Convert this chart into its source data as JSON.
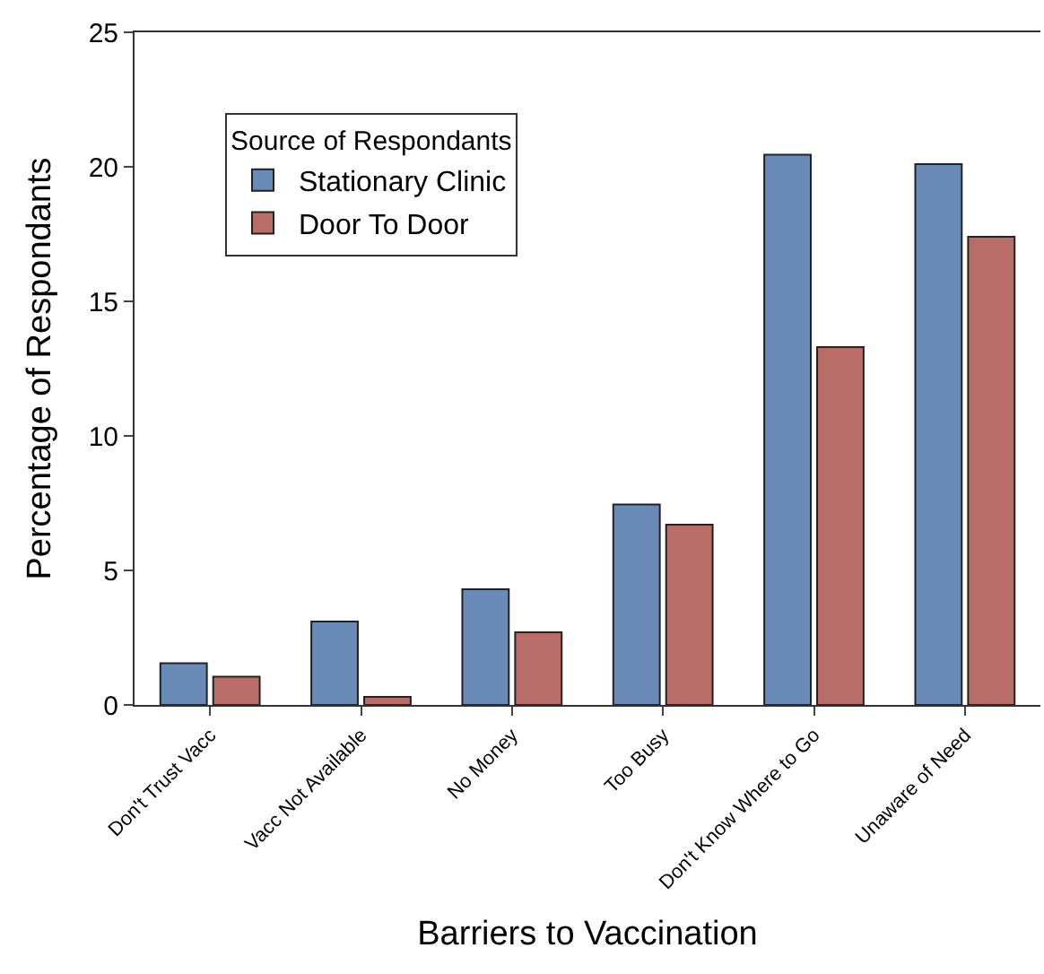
{
  "chart_data": {
    "type": "bar",
    "xlabel": "Barriers to Vaccination",
    "ylabel": "Percentage of Respondants",
    "legend_title": "Source of Respondants",
    "legend": "top left",
    "categories": [
      "Don't Trust Vacc",
      "Vacc Not Available",
      "No Money",
      "Too Busy",
      "Don't Know Where to Go",
      "Unaware of Need"
    ],
    "series": [
      {
        "name": "Stationary Clinic",
        "color": "#6a8ab8",
        "values": [
          1.55,
          3.1,
          4.3,
          7.45,
          20.45,
          20.1
        ]
      },
      {
        "name": "Door To Door",
        "color": "#b96d68",
        "values": [
          1.05,
          0.3,
          2.7,
          6.7,
          13.3,
          17.4
        ]
      }
    ],
    "ylim": [
      0,
      25
    ],
    "yticks": [
      0,
      5,
      10,
      15,
      20,
      25
    ],
    "grid": false
  }
}
